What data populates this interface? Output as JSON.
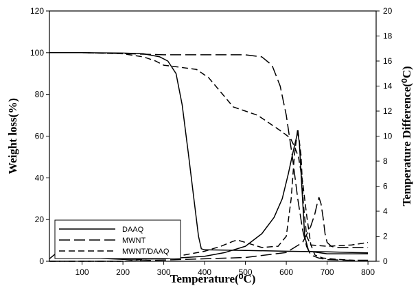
{
  "chart_data": {
    "type": "line",
    "xlabel": "Temperature(⁰C)",
    "ylabel_left": "Weight loss(%)",
    "ylabel_right": "Temperature Difference(⁰C)",
    "xlim": [
      20,
      820
    ],
    "xticks": [
      100,
      200,
      300,
      400,
      500,
      600,
      700,
      800
    ],
    "ylim_left": [
      0,
      120
    ],
    "yticks_left": [
      0,
      20,
      40,
      60,
      80,
      100,
      120
    ],
    "ylim_right": [
      0,
      20
    ],
    "yticks_right": [
      0,
      2,
      4,
      6,
      8,
      10,
      12,
      14,
      16,
      18,
      20
    ],
    "legend_position": "bottom-left",
    "legend": [
      {
        "name": "DAAQ",
        "dash": "solid"
      },
      {
        "name": "MWNT",
        "dash": "long-dash"
      },
      {
        "name": "MWNT/DAAQ",
        "dash": "dash"
      }
    ],
    "series": [
      {
        "name": "DAAQ",
        "axis": "left",
        "dash": "solid",
        "x": [
          20,
          100,
          200,
          250,
          290,
          310,
          330,
          345,
          360,
          375,
          385,
          392,
          400,
          500,
          600,
          700,
          800
        ],
        "y": [
          100,
          100,
          99.8,
          99.5,
          98,
          96,
          90,
          75,
          52,
          28,
          12,
          6,
          5.5,
          5.2,
          4.8,
          4.5,
          4
        ]
      },
      {
        "name": "MWNT",
        "axis": "left",
        "dash": "long-dash",
        "x": [
          20,
          100,
          200,
          300,
          400,
          500,
          540,
          565,
          585,
          600,
          615,
          628,
          640,
          650,
          660,
          680,
          700,
          750,
          800
        ],
        "y": [
          100,
          100,
          99.6,
          99,
          99,
          99,
          98,
          94,
          84,
          70,
          50,
          30,
          15,
          7,
          3,
          1.5,
          0.8,
          0.5,
          0.5
        ]
      },
      {
        "name": "MWNT/DAAQ",
        "axis": "left",
        "dash": "dash",
        "x": [
          20,
          100,
          200,
          250,
          280,
          300,
          340,
          380,
          410,
          440,
          470,
          500,
          530,
          560,
          590,
          610,
          620,
          630,
          640,
          650,
          660,
          670,
          690,
          720,
          760,
          800
        ],
        "y": [
          100,
          100,
          99.5,
          98,
          96,
          94,
          93,
          92,
          88,
          81,
          74,
          72,
          70,
          66,
          62,
          59,
          55,
          50,
          38,
          22,
          8,
          3,
          1.5,
          1,
          0.5,
          0.3
        ]
      },
      {
        "name": "DAAQ ΔT",
        "axis": "right",
        "dash": "solid",
        "x": [
          20,
          35,
          50,
          70,
          100,
          200,
          300,
          400,
          450,
          500,
          540,
          570,
          590,
          605,
          615,
          622,
          628,
          632,
          638,
          645,
          655,
          700,
          800
        ],
        "y": [
          0.2,
          0.6,
          0.5,
          0.35,
          0.3,
          0.15,
          0.2,
          0.4,
          0.7,
          1.2,
          2.2,
          3.5,
          5,
          7,
          8.5,
          9.5,
          10.3,
          9.5,
          6,
          2,
          0.8,
          0.6,
          0.6
        ]
      },
      {
        "name": "MWNT ΔT",
        "axis": "right",
        "dash": "long-dash",
        "x": [
          20,
          100,
          200,
          300,
          400,
          500,
          600,
          640,
          660,
          670,
          675,
          680,
          685,
          690,
          695,
          700,
          710,
          720,
          800
        ],
        "y": [
          0,
          0,
          0,
          0.1,
          0.2,
          0.3,
          0.7,
          1.5,
          2.8,
          3.8,
          4.5,
          5.1,
          4.6,
          3.5,
          2.2,
          1.5,
          1.2,
          1.1,
          1.1
        ]
      },
      {
        "name": "MWNT/DAAQ ΔT",
        "axis": "right",
        "dash": "dash",
        "x": [
          20,
          100,
          200,
          300,
          350,
          400,
          440,
          470,
          480,
          500,
          540,
          580,
          600,
          612,
          620,
          628,
          636,
          642,
          650,
          660,
          700,
          760,
          800
        ],
        "y": [
          0,
          0,
          0,
          0.3,
          0.5,
          0.8,
          1.2,
          1.6,
          1.7,
          1.5,
          1.1,
          1.2,
          2,
          5,
          8.5,
          10.6,
          8.5,
          4.5,
          2,
          1.3,
          1.2,
          1.3,
          1.5
        ]
      }
    ]
  }
}
